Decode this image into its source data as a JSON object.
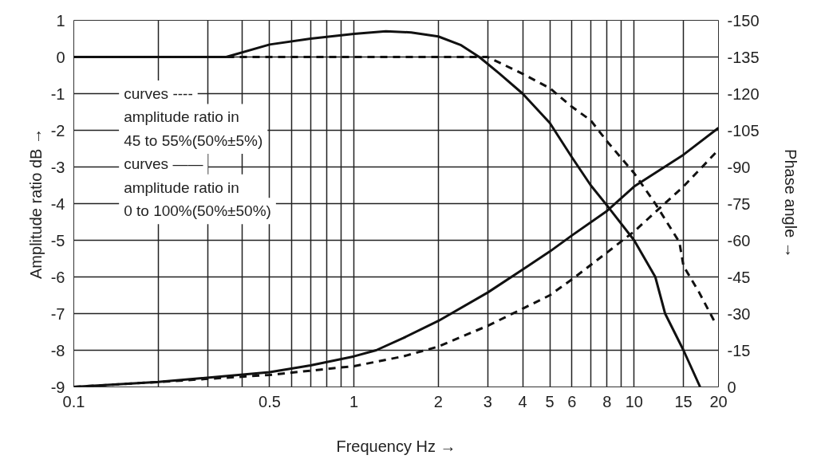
{
  "chart_data": {
    "type": "line",
    "xlabel": "Frequency Hz →",
    "ylabel": "Amplitude ratio dB →",
    "y2label": "Phase angle →",
    "log": "x",
    "grid": true,
    "xlim": [
      0.1,
      20
    ],
    "xticks": [
      0.1,
      {
        "value": 0.2,
        "label": null
      },
      {
        "value": 0.3,
        "label": null
      },
      {
        "value": 0.4,
        "label": null
      },
      0.5,
      {
        "value": 0.6,
        "label": null
      },
      {
        "value": 0.7,
        "label": null
      },
      {
        "value": 0.8,
        "label": null
      },
      {
        "value": 0.9,
        "label": null
      },
      1,
      2,
      3,
      4,
      5,
      6,
      {
        "value": 7,
        "label": null
      },
      8,
      {
        "value": 9,
        "label": null
      },
      10,
      15,
      20
    ],
    "ylim": [
      -9,
      1
    ],
    "yticks": [
      -9,
      -8,
      -7,
      -6,
      -5,
      -4,
      -3,
      -2,
      -1,
      0,
      1
    ],
    "y2lim": [
      0,
      -150
    ],
    "y2ticks": [
      0,
      -15,
      -30,
      -45,
      -60,
      -75,
      -90,
      -105,
      -120,
      -135,
      -150
    ],
    "annotations": [
      "curves ----",
      "amplitude ratio in",
      "45 to 55%(50%±5%)",
      "curves ——",
      "amplitude ratio in",
      "0 to 100%(50%±50%)"
    ],
    "series": [
      {
        "color": "#111111",
        "line_style": "solid",
        "x": [
          0.1,
          0.2,
          0.35,
          0.5,
          0.7,
          1,
          1.3,
          1.6,
          2,
          2.4,
          2.8,
          3.3,
          4,
          5,
          6,
          7,
          8,
          10,
          11.9,
          12.9,
          15,
          17.2
        ],
        "values": [
          0,
          0,
          0,
          0.34,
          0.5,
          0.63,
          0.7,
          0.67,
          0.56,
          0.33,
          0,
          -0.45,
          -1,
          -1.8,
          -2.74,
          -3.5,
          -4.05,
          -5,
          -6,
          -7,
          -8,
          -9
        ]
      },
      {
        "color": "#111111",
        "line_style": "dashed",
        "x": [
          0.1,
          0.5,
          1,
          2,
          3,
          4,
          5,
          6,
          7,
          8,
          10,
          11.9,
          14.5,
          15,
          17,
          19.4
        ],
        "values": [
          0,
          0,
          0,
          0,
          0,
          -0.46,
          -0.85,
          -1.36,
          -1.73,
          -2.3,
          -3.17,
          -4,
          -5.05,
          -5.7,
          -6.4,
          -7.23
        ]
      },
      {
        "color": "#111111",
        "line_style": "solid",
        "axis": "y2",
        "x": [
          0.1,
          0.2,
          0.5,
          0.7,
          1,
          1.2,
          1.5,
          2,
          3,
          4,
          5,
          6,
          8,
          10,
          15,
          20
        ],
        "values": [
          0,
          -2,
          -6,
          -8.8,
          -12.5,
          -15,
          -20,
          -27,
          -38.6,
          -48,
          -55.4,
          -62,
          -72,
          -82,
          -95,
          -106
        ]
      },
      {
        "color": "#111111",
        "line_style": "dashed",
        "axis": "y2",
        "x": [
          0.1,
          0.2,
          0.5,
          1,
          1.5,
          2,
          3,
          4,
          5,
          6,
          8,
          10,
          15,
          20
        ],
        "values": [
          0,
          -2,
          -4.9,
          -8.5,
          -12.5,
          -16.5,
          -25,
          -32,
          -37.5,
          -44,
          -55,
          -63.6,
          -82,
          -97
        ]
      }
    ]
  }
}
